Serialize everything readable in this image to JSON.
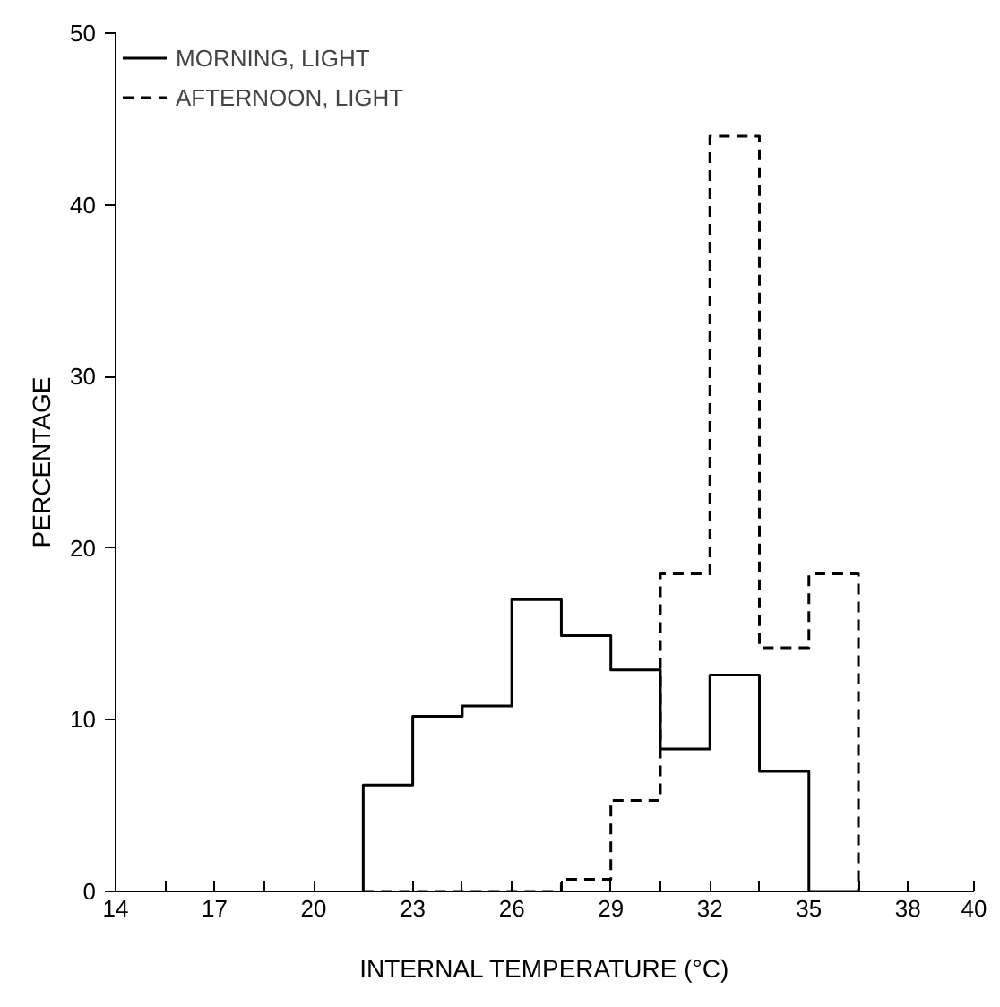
{
  "chart_data": {
    "type": "histogram",
    "xlabel": "INTERNAL TEMPERATURE (°C)",
    "ylabel": "PERCENTAGE",
    "bins": [
      21.5,
      23,
      24.5,
      26,
      27.5,
      29,
      30.5,
      32,
      33.5,
      35,
      36.5
    ],
    "series": [
      {
        "name": "MORNING, LIGHT",
        "color": "#000000",
        "line_style": "solid",
        "values": [
          6.2,
          10.2,
          10.8,
          17.0,
          14.9,
          12.9,
          8.3,
          12.6,
          7.0,
          0
        ]
      },
      {
        "name": "AFTERNOON, LIGHT",
        "color": "#000000",
        "line_style": "dashed",
        "values": [
          0,
          0,
          0,
          0,
          0.7,
          5.3,
          18.5,
          44,
          14.2,
          18.5
        ]
      }
    ],
    "xlim": [
      14,
      40
    ],
    "xticks": [
      14,
      {
        "value": 15.5,
        "label": null
      },
      17,
      {
        "value": 18.5,
        "label": null
      },
      20,
      {
        "value": 21.5,
        "label": null
      },
      23,
      {
        "value": 24.5,
        "label": null
      },
      26,
      {
        "value": 27.5,
        "label": null
      },
      29,
      {
        "value": 30.5,
        "label": null
      },
      32,
      {
        "value": 33.5,
        "label": null
      },
      35,
      {
        "value": 36.5,
        "label": null
      },
      38,
      40
    ],
    "ylim": [
      0,
      50
    ],
    "yticks": [
      0,
      10,
      20,
      30,
      40,
      50
    ],
    "grid": false,
    "legend": "top left"
  }
}
